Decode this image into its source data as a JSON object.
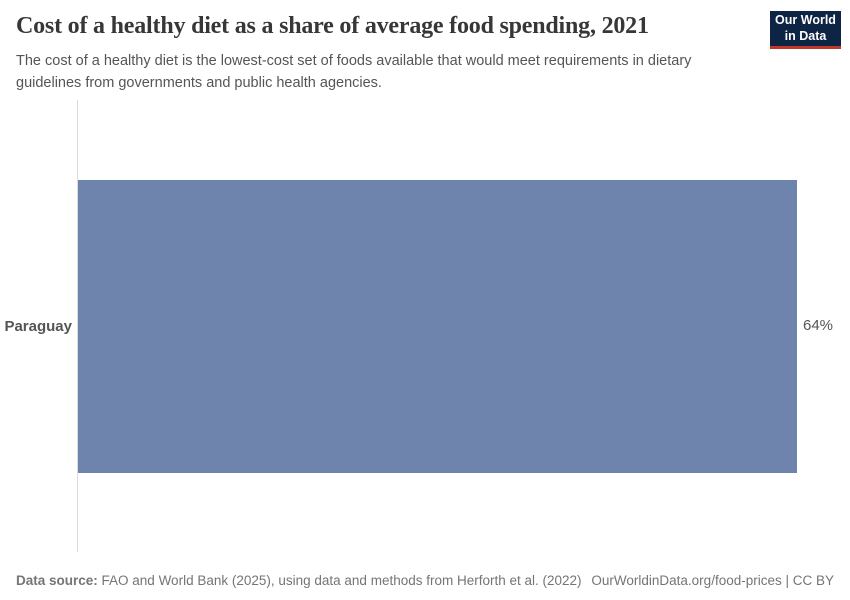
{
  "header": {
    "title": "Cost of a healthy diet as a share of average food spending, 2021",
    "subtitle": "The cost of a healthy diet is the lowest-cost set of foods available that would meet requirements in dietary guidelines from governments and public health agencies.",
    "logo": {
      "line1": "Our World",
      "line2": "in Data"
    }
  },
  "chart_data": {
    "type": "bar",
    "orientation": "horizontal",
    "title": "Cost of a healthy diet as a share of average food spending, 2021",
    "categories": [
      "Paraguay"
    ],
    "values": [
      64
    ],
    "value_labels": [
      "64%"
    ],
    "unit": "%",
    "xlabel": "",
    "ylabel": "",
    "xlim": [
      0,
      64
    ],
    "grid": false,
    "legend": false
  },
  "colors": {
    "bar": "#6e84ac",
    "axis_line": "#dbdbdb",
    "title_text": "#383636",
    "subtitle_text": "#555555",
    "label_text": "#555555",
    "footer_text": "#757575",
    "logo_bg": "#0d2444",
    "logo_stripe": "#bf3729"
  },
  "footer": {
    "data_source_label": "Data source:",
    "data_source_text": " FAO and World Bank (2025), using data and methods from Herforth et al. (2022)",
    "attribution": "OurWorldinData.org/food-prices | CC BY"
  }
}
